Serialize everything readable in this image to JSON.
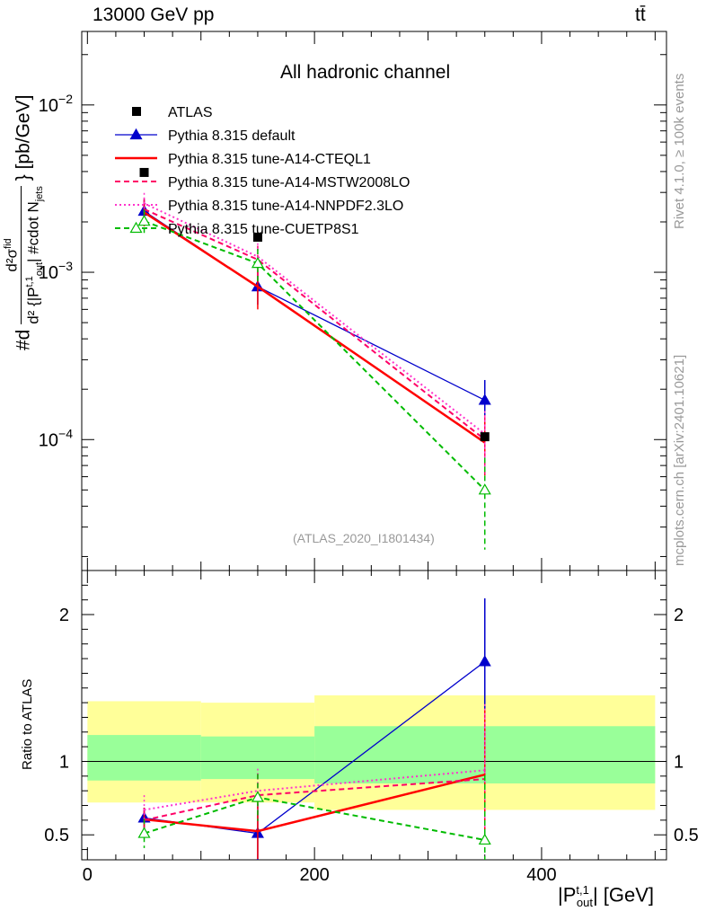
{
  "header": {
    "left": "13000 GeV pp",
    "right": "tt̄"
  },
  "side_labels": {
    "rivet": "Rivet 4.1.0, ≥ 100k events",
    "mcplots": "mcplots.cern.ch [arXiv:2401.10621]"
  },
  "chart_data": {
    "type": "line",
    "title": "All hadronic channel",
    "watermark": "(ATLAS_2020_I1801434)",
    "xlabel": "|P_out^t,1| [GeV]",
    "xlabel_main": "|P",
    "xlabel_sub": "out",
    "xlabel_sup": "t,1",
    "xlabel_tail": "| [GeV]",
    "ylabel": "#d d²σ^{fid} / d²{|P_out^t,1| #cdot N_jets} [pb/GeV]",
    "ylabel_parts": {
      "a": "#d",
      "num": "d²σ",
      "num_sup": "fid",
      "den": "d² {|P",
      "den_sub": "out",
      "den_sup": "t,1",
      "den_tail": "| #cdot N",
      "den_tail_sub": "jets",
      "unit": "} [pb/GeV]"
    },
    "xlim": [
      -5,
      510
    ],
    "x_ticks": [
      "0",
      "200",
      "400"
    ],
    "x_tick_values": [
      0,
      200,
      400
    ],
    "main_panel": {
      "yscale": "log",
      "ylim": [
        1.65e-05,
        0.0275
      ],
      "y_ticks": [
        {
          "value": 0.0001,
          "base": "10",
          "exp": "−4"
        },
        {
          "value": 0.001,
          "base": "10",
          "exp": "−3"
        },
        {
          "value": 0.01,
          "base": "10",
          "exp": "−2"
        }
      ]
    },
    "ratio_panel": {
      "ylabel": "Ratio to ATLAS",
      "ylim": [
        0.33,
        2.3
      ],
      "y_ticks": [
        "0.5",
        "1",
        "2"
      ],
      "y_tick_values": [
        0.5,
        1,
        2
      ],
      "bands": [
        {
          "x": [
            0,
            100
          ],
          "inner": [
            0.87,
            1.18
          ],
          "outer": [
            0.72,
            1.41
          ]
        },
        {
          "x": [
            100,
            200
          ],
          "inner": [
            0.88,
            1.17
          ],
          "outer": [
            0.72,
            1.4
          ]
        },
        {
          "x": [
            200,
            500
          ],
          "inner": [
            0.85,
            1.24
          ],
          "outer": [
            0.67,
            1.45
          ]
        }
      ],
      "band_colors": {
        "inner": "#99ff99",
        "outer": "#ffff99"
      }
    },
    "bin_edges": [
      0,
      100,
      200,
      500
    ],
    "x": [
      50,
      150,
      350
    ],
    "data": {
      "name": "ATLAS",
      "color": "#000000",
      "values": [
        0.00395,
        0.00162,
        0.000104
      ]
    },
    "series": [
      {
        "name": "Pythia 8.315 default",
        "color": "#0000cc",
        "style": "solid",
        "marker": "triangle-filled",
        "values": [
          0.00232,
          0.00082,
          0.000172
        ],
        "errors": [
          0.0004,
          0.00018,
          5.5e-05
        ],
        "ratio": [
          0.615,
          0.51,
          1.68
        ],
        "ratio_errors": [
          0.07,
          0.2,
          0.43
        ]
      },
      {
        "name": "Pythia 8.315 tune-A14-CTEQL1",
        "color": "#ff0000",
        "style": "solid-thick",
        "marker": "none",
        "values": [
          0.00228,
          0.00082,
          9.6e-05
        ],
        "errors": [
          0.0004,
          0.00022,
          3.5e-05
        ],
        "ratio": [
          0.605,
          0.525,
          0.91
        ],
        "ratio_errors": [
          0.08,
          0.19,
          0.45
        ]
      },
      {
        "name": "Pythia 8.315 tune-A14-MSTW2008LO",
        "color": "#ff0066",
        "style": "dashed",
        "marker": "none",
        "values": [
          0.00238,
          0.00119,
          0.0001
        ],
        "errors": [
          0.0004,
          0.00025,
          4e-05
        ],
        "ratio": [
          0.6,
          0.77,
          0.88
        ],
        "ratio_errors": [
          0.08,
          0.15,
          0.45
        ]
      },
      {
        "name": "Pythia 8.315 tune-A14-NNPDF2.3LO",
        "color": "#ff33cc",
        "style": "dotted",
        "marker": "none",
        "values": [
          0.00258,
          0.00124,
          0.000108
        ],
        "errors": [
          0.0004,
          0.00025,
          4e-05
        ],
        "ratio": [
          0.67,
          0.8,
          0.94
        ],
        "ratio_errors": [
          0.1,
          0.15,
          0.45
        ]
      },
      {
        "name": "Pythia 8.315 tune-CUETP8S1",
        "color": "#00bb00",
        "style": "dashed",
        "marker": "triangle-open",
        "values": [
          0.00202,
          0.00113,
          5e-05
        ],
        "errors": [
          0.00035,
          0.00025,
          2.8e-05
        ],
        "ratio": [
          0.51,
          0.755,
          0.465
        ],
        "ratio_errors": [
          0.1,
          0.16,
          0.44
        ]
      }
    ]
  }
}
